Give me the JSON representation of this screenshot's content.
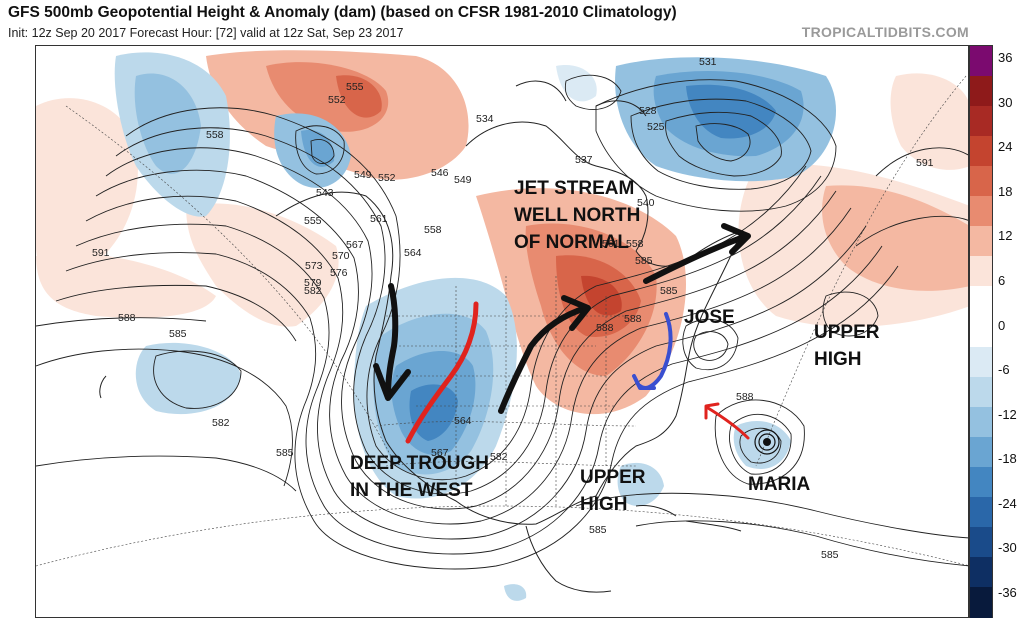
{
  "header": {
    "title": "GFS 500mb Geopotential Height & Anomaly (dam) (based on CFSR 1981-2010 Climatology)",
    "subtitle": "Init: 12z Sep 20 2017   Forecast Hour: [72]   valid at 12z Sat, Sep 23 2017",
    "site": "TROPICALTIDBITS.COM"
  },
  "annotations": {
    "jet_stream": "JET STREAM\nWELL NORTH\nOF NORMAL",
    "jose": "JOSE",
    "upper_high_east": "UPPER\nHIGH",
    "deep_trough": "DEEP TROUGH\nIN THE WEST",
    "upper_high_south": "UPPER\nHIGH",
    "maria": "MARIA"
  },
  "contour_labels": [
    "555",
    "552",
    "558",
    "546",
    "549",
    "552",
    "549",
    "543",
    "555",
    "561",
    "558",
    "564",
    "567",
    "570",
    "573",
    "576",
    "579",
    "582",
    "591",
    "588",
    "585",
    "582",
    "585",
    "564",
    "567",
    "582",
    "585",
    "588",
    "585",
    "591",
    "531",
    "528",
    "525",
    "534",
    "537",
    "540",
    "561",
    "558",
    "585",
    "588",
    "588",
    "585"
  ],
  "colorbar": {
    "ticks": [
      "36",
      "30",
      "24",
      "18",
      "12",
      "6",
      "0",
      "-6",
      "-12",
      "-18",
      "-24",
      "-30",
      "-36"
    ],
    "colors": [
      "#7b0a6f",
      "#8e1a1a",
      "#a82a24",
      "#c4442f",
      "#d8654a",
      "#e88b70",
      "#f4b8a2",
      "#fbe4da",
      "#ffffff",
      "#ffffff",
      "#dbeaf4",
      "#bcd9eb",
      "#94c1e0",
      "#6aa5d2",
      "#4386c1",
      "#2a67a9",
      "#1a4b8a",
      "#0e2f63",
      "#081a3c"
    ]
  }
}
